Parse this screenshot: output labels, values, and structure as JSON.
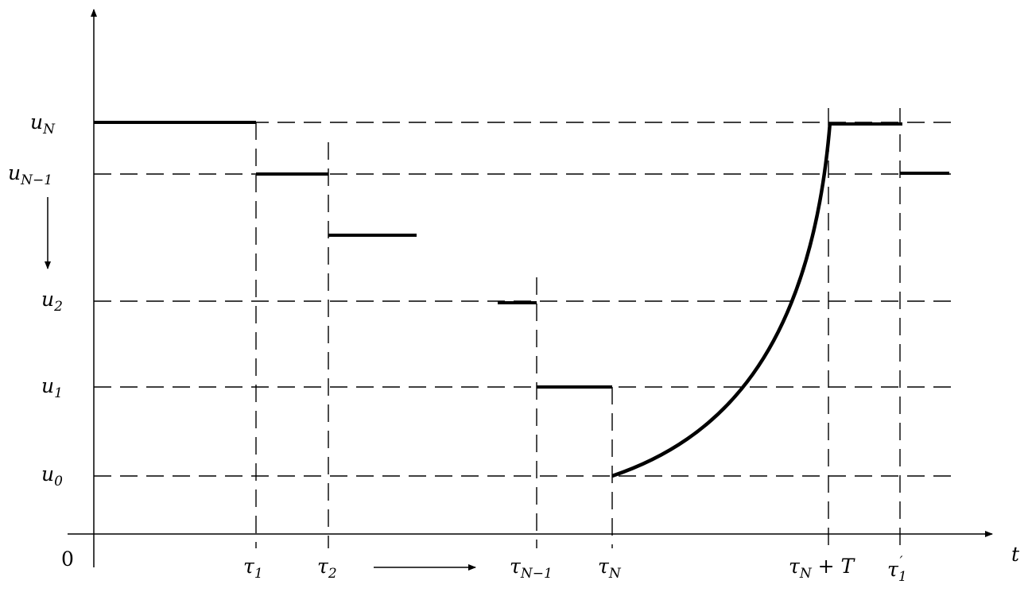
{
  "axes": {
    "t_label": "t",
    "origin_label": "0"
  },
  "levels": [
    {
      "id": "uN",
      "base": "u",
      "sub": "N"
    },
    {
      "id": "uN1",
      "base": "u",
      "sub": "N−1"
    },
    {
      "id": "u2",
      "base": "u",
      "sub": "2"
    },
    {
      "id": "u1",
      "base": "u",
      "sub": "1"
    },
    {
      "id": "u0",
      "base": "u",
      "sub": "0"
    }
  ],
  "times": [
    {
      "id": "tau1",
      "base": "τ",
      "sub": "1",
      "suffix": ""
    },
    {
      "id": "tau2",
      "base": "τ",
      "sub": "2",
      "suffix": ""
    },
    {
      "id": "tauN1",
      "base": "τ",
      "sub": "N−1",
      "suffix": ""
    },
    {
      "id": "tauN",
      "base": "τ",
      "sub": "N",
      "suffix": ""
    },
    {
      "id": "tauNT",
      "base": "τ",
      "sub": "N",
      "suffix": " + T"
    },
    {
      "id": "tau1prime",
      "base": "τ",
      "sub": "1",
      "prime": "′"
    }
  ]
}
